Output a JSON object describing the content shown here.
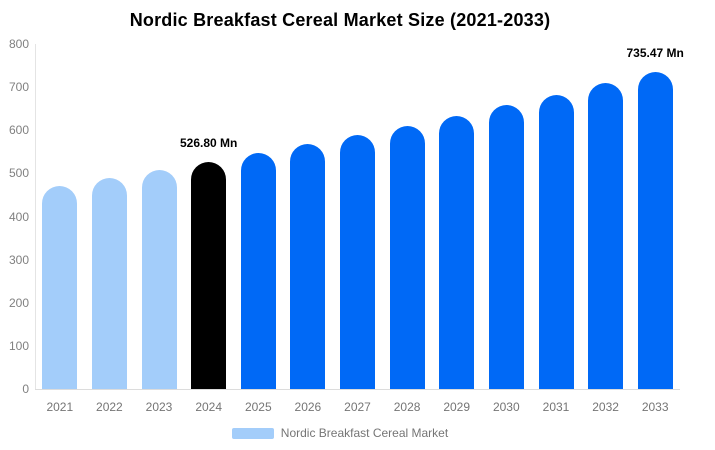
{
  "title": "Nordic Breakfast Cereal Market Size (2021-2033)",
  "legend": {
    "label": "Nordic Breakfast Cereal Market",
    "swatch_color": "#A3CDFA"
  },
  "colors": {
    "historical_bar": "#A3CDFA",
    "base_year_bar": "#000000",
    "forecast_bar": "#0069F6",
    "axis_text": "#808080",
    "axis_line": "#dcdcdc",
    "value_label": "#000000"
  },
  "chart_data": {
    "type": "bar",
    "title": "Nordic Breakfast Cereal Market Size (2021-2033)",
    "series_name": "Nordic Breakfast Cereal Market",
    "categories": [
      "2021",
      "2022",
      "2023",
      "2024",
      "2025",
      "2026",
      "2027",
      "2028",
      "2029",
      "2030",
      "2031",
      "2032",
      "2033"
    ],
    "values": [
      471.3,
      489.2,
      507.6,
      526.8,
      546.7,
      567.4,
      588.8,
      611.0,
      634.1,
      658.1,
      682.9,
      708.7,
      735.47
    ],
    "unit": "Mn",
    "xlabel": "",
    "ylabel": "",
    "ylim": [
      0,
      800
    ],
    "yticks": [
      0,
      100,
      200,
      300,
      400,
      500,
      600,
      700,
      800
    ],
    "grid": false,
    "legend_position": "bottom",
    "annotations": [
      {
        "category": "2024",
        "text": "526.80 Mn"
      },
      {
        "category": "2033",
        "text": "735.47 Mn"
      }
    ],
    "bar_colors": [
      "#A3CDFA",
      "#A3CDFA",
      "#A3CDFA",
      "#000000",
      "#0069F6",
      "#0069F6",
      "#0069F6",
      "#0069F6",
      "#0069F6",
      "#0069F6",
      "#0069F6",
      "#0069F6",
      "#0069F6"
    ]
  }
}
